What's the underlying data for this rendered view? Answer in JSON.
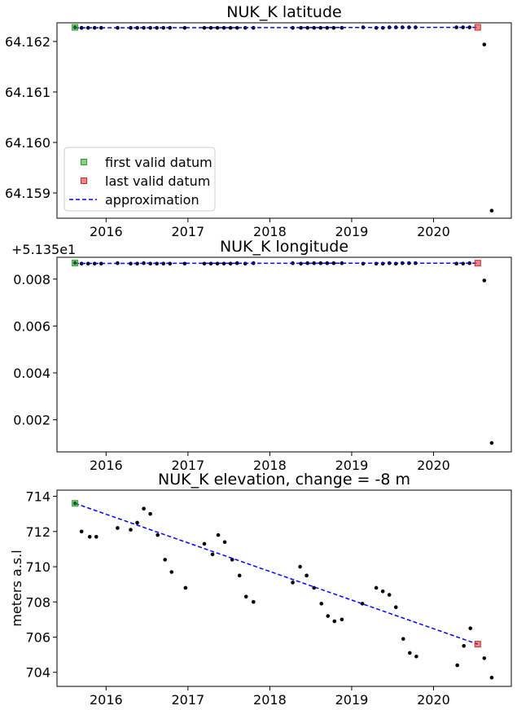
{
  "chart_data": [
    {
      "type": "scatter",
      "title": "NUK_K latitude",
      "xlabel": "",
      "ylabel": "",
      "offset_text": "",
      "xlim": [
        2015.4,
        2020.95
      ],
      "ylim": [
        64.1585,
        64.16237
      ],
      "x_ticks": [
        2016,
        2017,
        2018,
        2019,
        2020
      ],
      "x_tick_labels": [
        "2016",
        "2017",
        "2018",
        "2019",
        "2020"
      ],
      "y_ticks": [
        64.159,
        64.16,
        64.161,
        64.162
      ],
      "y_tick_labels": [
        "64.159",
        "64.160",
        "64.161",
        "64.162"
      ],
      "series": [
        {
          "name": "data",
          "role": "data",
          "color": "#000000",
          "x": [
            2015.62,
            2015.7,
            2015.78,
            2015.86,
            2015.94,
            2016.14,
            2016.3,
            2016.38,
            2016.46,
            2016.54,
            2016.62,
            2016.7,
            2016.78,
            2016.96,
            2017.2,
            2017.28,
            2017.36,
            2017.44,
            2017.52,
            2017.6,
            2017.7,
            2017.8,
            2018.28,
            2018.38,
            2018.46,
            2018.54,
            2018.62,
            2018.7,
            2018.78,
            2018.88,
            2019.14,
            2019.3,
            2019.38,
            2019.46,
            2019.54,
            2019.62,
            2019.7,
            2019.78,
            2020.28,
            2020.36,
            2020.44,
            2020.62,
            2020.71
          ],
          "y": [
            64.16228,
            64.16227,
            64.16227,
            64.16227,
            64.16227,
            64.16227,
            64.16227,
            64.16227,
            64.16227,
            64.16227,
            64.16227,
            64.16227,
            64.16227,
            64.16227,
            64.16227,
            64.16227,
            64.16227,
            64.16227,
            64.16227,
            64.16227,
            64.16227,
            64.16227,
            64.16227,
            64.16227,
            64.16227,
            64.16227,
            64.16227,
            64.16227,
            64.16227,
            64.16227,
            64.16228,
            64.16227,
            64.16227,
            64.16228,
            64.16228,
            64.16228,
            64.16228,
            64.16228,
            64.16228,
            64.16228,
            64.16228,
            64.16194,
            64.15865
          ]
        },
        {
          "name": "approximation",
          "role": "line",
          "color": "#0000ff",
          "x": [
            2015.62,
            2020.54
          ],
          "y": [
            64.16227,
            64.16228
          ]
        },
        {
          "name": "first valid datum",
          "role": "first",
          "color": "#2ca02c",
          "x": [
            2015.62
          ],
          "y": [
            64.16228
          ]
        },
        {
          "name": "last valid datum",
          "role": "last",
          "color": "#d62728",
          "x": [
            2020.54
          ],
          "y": [
            64.16228
          ]
        }
      ],
      "legend": {
        "placement": "lower-left",
        "items": [
          "first valid datum",
          "last valid datum",
          "approximation"
        ]
      },
      "grid": false
    },
    {
      "type": "scatter",
      "title": "NUK_K longitude",
      "xlabel": "",
      "ylabel": "",
      "offset_text": "+5.135e1",
      "xlim": [
        2015.4,
        2020.95
      ],
      "ylim": [
        0.00063,
        0.00893
      ],
      "x_ticks": [
        2016,
        2017,
        2018,
        2019,
        2020
      ],
      "x_tick_labels": [
        "2016",
        "2017",
        "2018",
        "2019",
        "2020"
      ],
      "y_ticks": [
        0.002,
        0.004,
        0.006,
        0.008
      ],
      "y_tick_labels": [
        "0.002",
        "0.004",
        "0.006",
        "0.008"
      ],
      "series": [
        {
          "name": "data",
          "role": "data",
          "color": "#000000",
          "x": [
            2015.62,
            2015.7,
            2015.78,
            2015.86,
            2015.94,
            2016.14,
            2016.3,
            2016.38,
            2016.46,
            2016.54,
            2016.62,
            2016.7,
            2016.78,
            2016.96,
            2017.2,
            2017.28,
            2017.36,
            2017.44,
            2017.52,
            2017.6,
            2017.7,
            2017.8,
            2018.28,
            2018.38,
            2018.46,
            2018.54,
            2018.62,
            2018.7,
            2018.78,
            2018.88,
            2019.14,
            2019.3,
            2019.38,
            2019.46,
            2019.54,
            2019.62,
            2019.7,
            2019.78,
            2020.28,
            2020.36,
            2020.44,
            2020.62,
            2020.71
          ],
          "y": [
            0.00869,
            0.00866,
            0.00866,
            0.00866,
            0.00866,
            0.00868,
            0.00866,
            0.00866,
            0.00868,
            0.00866,
            0.00866,
            0.00866,
            0.00866,
            0.00866,
            0.00866,
            0.00866,
            0.00866,
            0.00866,
            0.00866,
            0.00868,
            0.00866,
            0.00868,
            0.00868,
            0.00866,
            0.00868,
            0.00868,
            0.00868,
            0.00868,
            0.00868,
            0.00868,
            0.00866,
            0.00866,
            0.00866,
            0.00868,
            0.00866,
            0.00868,
            0.00868,
            0.00868,
            0.00866,
            0.00866,
            0.00868,
            0.00794,
            0.00101
          ]
        },
        {
          "name": "approximation",
          "role": "line",
          "color": "#0000ff",
          "x": [
            2015.62,
            2020.54
          ],
          "y": [
            0.00867,
            0.00868
          ]
        },
        {
          "name": "first valid datum",
          "role": "first",
          "color": "#2ca02c",
          "x": [
            2015.62
          ],
          "y": [
            0.00869
          ]
        },
        {
          "name": "last valid datum",
          "role": "last",
          "color": "#d62728",
          "x": [
            2020.54
          ],
          "y": [
            0.00868
          ]
        }
      ],
      "legend": null,
      "grid": false
    },
    {
      "type": "scatter",
      "title": "NUK_K elevation, change = -8 m",
      "xlabel": "",
      "ylabel": "meters a.s.l",
      "offset_text": "",
      "xlim": [
        2015.4,
        2020.95
      ],
      "ylim": [
        703.2,
        714.35
      ],
      "x_ticks": [
        2016,
        2017,
        2018,
        2019,
        2020
      ],
      "x_tick_labels": [
        "2016",
        "2017",
        "2018",
        "2019",
        "2020"
      ],
      "y_ticks": [
        704,
        706,
        708,
        710,
        712,
        714
      ],
      "y_tick_labels": [
        "704",
        "706",
        "708",
        "710",
        "712",
        "714"
      ],
      "series": [
        {
          "name": "data",
          "role": "data",
          "color": "#000000",
          "x": [
            2015.62,
            2015.7,
            2015.8,
            2015.88,
            2016.14,
            2016.3,
            2016.38,
            2016.46,
            2016.54,
            2016.63,
            2016.72,
            2016.8,
            2016.97,
            2017.2,
            2017.3,
            2017.37,
            2017.45,
            2017.54,
            2017.63,
            2017.71,
            2017.8,
            2018.28,
            2018.37,
            2018.45,
            2018.54,
            2018.63,
            2018.71,
            2018.79,
            2018.88,
            2019.13,
            2019.3,
            2019.38,
            2019.46,
            2019.54,
            2019.63,
            2019.71,
            2019.79,
            2020.29,
            2020.37,
            2020.45,
            2020.62,
            2020.71
          ],
          "y": [
            713.6,
            712.0,
            711.7,
            711.7,
            712.2,
            712.1,
            712.5,
            713.3,
            713.0,
            711.8,
            710.4,
            709.7,
            708.8,
            711.3,
            710.7,
            711.8,
            711.4,
            710.4,
            709.5,
            708.3,
            708.0,
            709.1,
            710.0,
            709.5,
            708.8,
            707.9,
            707.2,
            706.9,
            707.0,
            707.9,
            708.8,
            708.6,
            708.4,
            707.7,
            705.9,
            705.1,
            704.9,
            704.4,
            705.5,
            706.5,
            704.8,
            703.7
          ]
        },
        {
          "name": "approximation",
          "role": "line",
          "color": "#0000ff",
          "x": [
            2015.62,
            2020.54
          ],
          "y": [
            713.6,
            705.6
          ]
        },
        {
          "name": "first valid datum",
          "role": "first",
          "color": "#2ca02c",
          "x": [
            2015.62
          ],
          "y": [
            713.6
          ]
        },
        {
          "name": "last valid datum",
          "role": "last",
          "color": "#d62728",
          "x": [
            2020.54
          ],
          "y": [
            705.6
          ]
        }
      ],
      "legend": null,
      "grid": false
    }
  ]
}
